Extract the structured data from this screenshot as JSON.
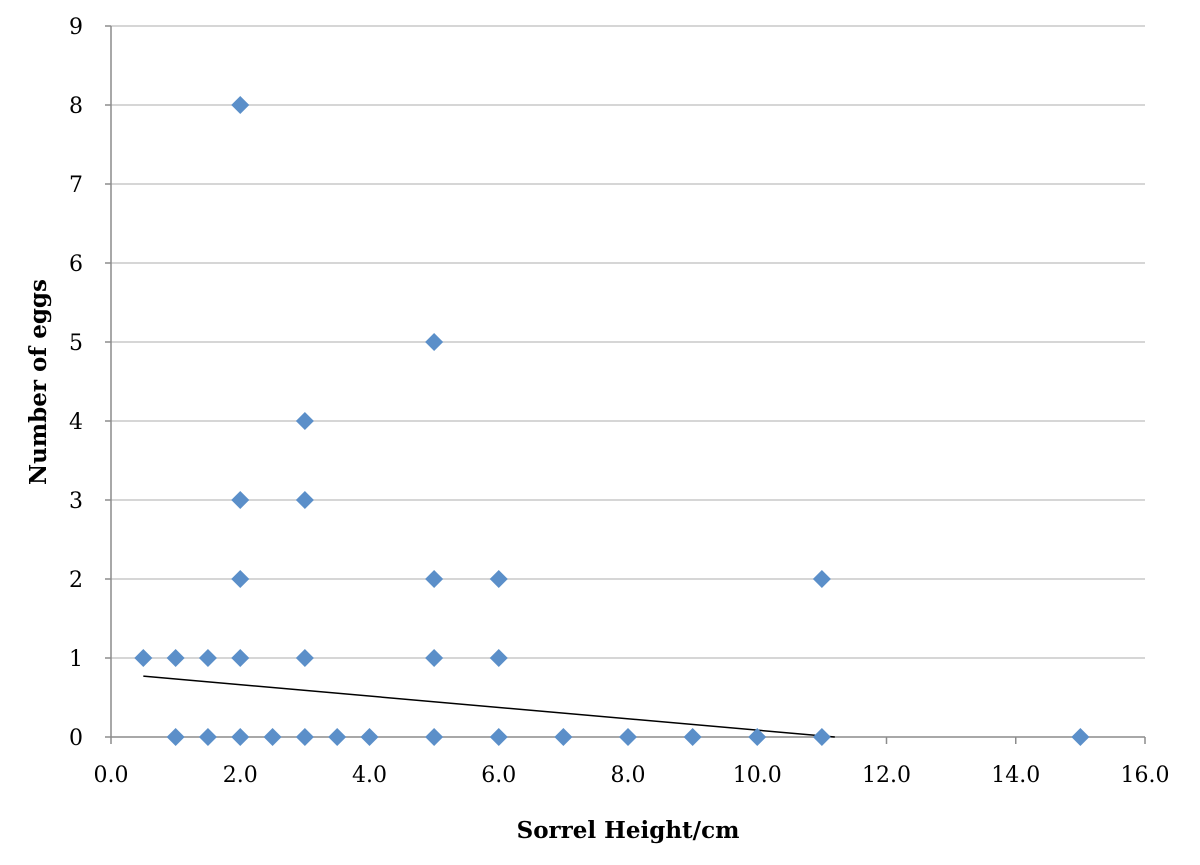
{
  "chart_data": {
    "type": "scatter",
    "title": "",
    "xlabel": "Sorrel Height/cm",
    "ylabel": "Number of eggs",
    "xlim": [
      0,
      16
    ],
    "ylim": [
      0,
      9
    ],
    "x_ticks": [
      "0.0",
      "2.0",
      "4.0",
      "6.0",
      "8.0",
      "10.0",
      "12.0",
      "14.0",
      "16.0"
    ],
    "y_ticks": [
      "0",
      "1",
      "2",
      "3",
      "4",
      "5",
      "6",
      "7",
      "8",
      "9"
    ],
    "grid": "horizontal",
    "legend": "none",
    "marker": "diamond",
    "marker_color": "#5b8fc9",
    "trendline_color": "#000000",
    "points": [
      {
        "x": 0.5,
        "y": 1
      },
      {
        "x": 1.0,
        "y": 1
      },
      {
        "x": 1.5,
        "y": 1
      },
      {
        "x": 2.0,
        "y": 1
      },
      {
        "x": 3.0,
        "y": 1
      },
      {
        "x": 5.0,
        "y": 1
      },
      {
        "x": 6.0,
        "y": 1
      },
      {
        "x": 1.0,
        "y": 0
      },
      {
        "x": 1.5,
        "y": 0
      },
      {
        "x": 2.0,
        "y": 0
      },
      {
        "x": 2.5,
        "y": 0
      },
      {
        "x": 3.0,
        "y": 0
      },
      {
        "x": 3.5,
        "y": 0
      },
      {
        "x": 4.0,
        "y": 0
      },
      {
        "x": 5.0,
        "y": 0
      },
      {
        "x": 6.0,
        "y": 0
      },
      {
        "x": 7.0,
        "y": 0
      },
      {
        "x": 8.0,
        "y": 0
      },
      {
        "x": 9.0,
        "y": 0
      },
      {
        "x": 10.0,
        "y": 0
      },
      {
        "x": 11.0,
        "y": 0
      },
      {
        "x": 15.0,
        "y": 0
      },
      {
        "x": 2.0,
        "y": 2
      },
      {
        "x": 5.0,
        "y": 2
      },
      {
        "x": 6.0,
        "y": 2
      },
      {
        "x": 11.0,
        "y": 2
      },
      {
        "x": 2.0,
        "y": 3
      },
      {
        "x": 3.0,
        "y": 3
      },
      {
        "x": 3.0,
        "y": 4
      },
      {
        "x": 5.0,
        "y": 5
      },
      {
        "x": 2.0,
        "y": 8
      }
    ],
    "trendline": {
      "type": "linear",
      "x_start": 0.5,
      "y_start": 0.77,
      "x_end": 11.2,
      "y_end": 0.0
    }
  }
}
